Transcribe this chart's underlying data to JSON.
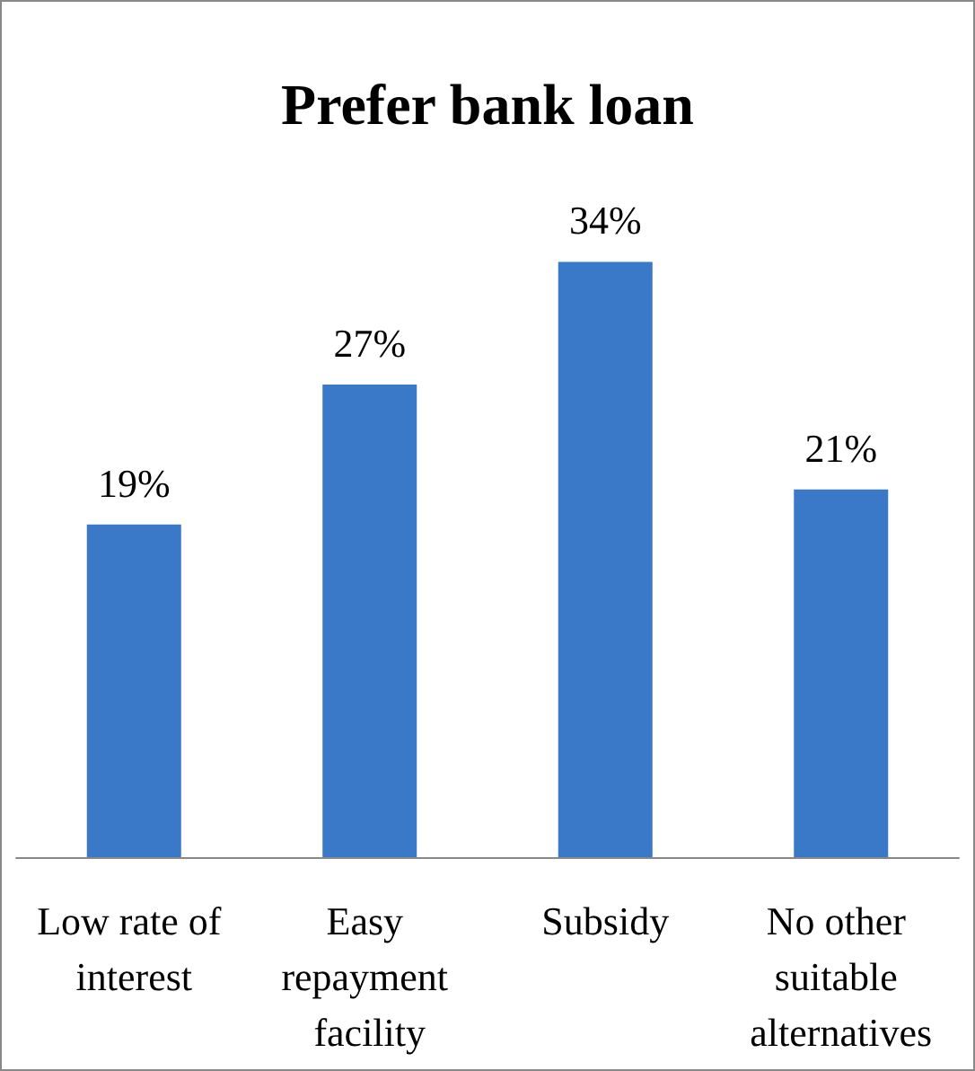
{
  "chart_data": {
    "type": "bar",
    "title": "Prefer bank loan",
    "categories": [
      "Low rate of interest",
      "Easy repayment facility",
      "Subsidy",
      "No other suitable alternatives"
    ],
    "values": [
      19,
      27,
      34,
      21
    ],
    "value_labels": [
      "19%",
      "27%",
      "34%",
      "21%"
    ],
    "color": "#3a78c8"
  }
}
